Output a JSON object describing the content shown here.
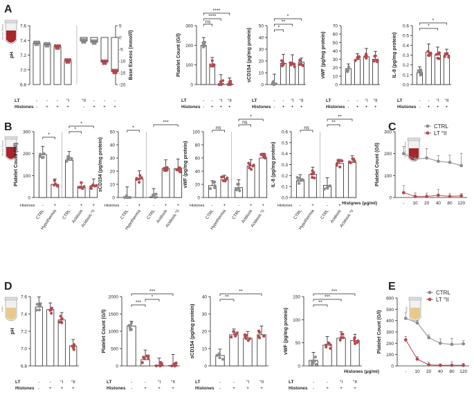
{
  "colors": {
    "ctrl": "#8c8c8c",
    "lt": "#b5494f",
    "bar": "#ffffff",
    "tube_blood": "#a6262b",
    "tube_prp": "#e8c98a"
  },
  "tubes": {
    "whole_blood": "Whole Blood",
    "prp": "PRP"
  },
  "panels": [
    {
      "letter": "A"
    },
    {
      "letter": "B"
    },
    {
      "letter": "C"
    },
    {
      "letter": "D"
    },
    {
      "letter": "E"
    }
  ],
  "rowlabels": {
    "lt": "LT",
    "histones": "Histones"
  },
  "conditions": {
    "A4": {
      "lt": [
        "-",
        "-",
        "°I",
        "°II"
      ],
      "hist": [
        "-",
        "+",
        "+",
        "+"
      ]
    },
    "A8": {
      "lt": [
        "-",
        "-",
        "-",
        "°I",
        "°II",
        "-",
        "-",
        "-"
      ],
      "hist": [
        "-",
        "+",
        "+",
        "+",
        "-",
        "+",
        "+",
        "+"
      ]
    },
    "D4": {
      "lt": [
        "-",
        "-",
        "°I",
        "°II"
      ],
      "hist": [
        "-",
        "+",
        "+",
        "+"
      ]
    },
    "B_hist": "Histones",
    "B_hist_vals_2": [
      "-",
      "+"
    ],
    "B_hist_vals_3": [
      "-",
      "+",
      "+"
    ]
  },
  "chart_data": [
    {
      "id": "A1",
      "panel": "A",
      "type": "bar",
      "ylabel": "pH",
      "y2label": "Base Excess (mmol/l)",
      "ylim": [
        6.8,
        7.6
      ],
      "yticks": [
        "6.8",
        "7.0",
        "7.2",
        "7.4",
        "7.6"
      ],
      "y2lim": [
        -20,
        5
      ],
      "y2ticks": [
        "-20",
        "-15",
        "-10",
        "-5",
        "0",
        "5"
      ],
      "series": [
        {
          "name": "pH",
          "values": [
            7.36,
            7.34,
            7.31,
            7.12
          ]
        },
        {
          "name": "Base Excess",
          "values": [
            -1.5,
            -2.0,
            -10.5,
            -14.5
          ]
        }
      ]
    },
    {
      "id": "A2",
      "panel": "A",
      "type": "bar",
      "ylabel": "Platelet Count (G/l)",
      "ylim": [
        0,
        300
      ],
      "yticks": [
        "0",
        "100",
        "200",
        "300"
      ],
      "values": [
        200,
        105,
        5,
        3
      ],
      "annotations": [
        "ns",
        "****",
        "****"
      ]
    },
    {
      "id": "A3",
      "panel": "A",
      "type": "bar",
      "ylabel": "sCD154 (pg/mg protein)",
      "ylim": [
        0,
        50
      ],
      "yticks": [
        "0",
        "10",
        "20",
        "30",
        "40",
        "50"
      ],
      "values": [
        1,
        18,
        18,
        19
      ],
      "annotations": [
        "*",
        "**",
        "*"
      ]
    },
    {
      "id": "A4",
      "panel": "A",
      "type": "bar",
      "ylabel": "vWF (pg/mg protein)",
      "ylim": [
        0,
        70
      ],
      "yticks": [
        "0",
        "10",
        "20",
        "30",
        "40",
        "50",
        "60",
        "70"
      ],
      "values": [
        19,
        30,
        33,
        30
      ]
    },
    {
      "id": "A5",
      "panel": "A",
      "type": "bar",
      "ylabel": "IL-8 (pg/mg protein)",
      "ylim": [
        0,
        0.6
      ],
      "yticks": [
        "0.0",
        "0.1",
        "0.2",
        "0.3",
        "0.4",
        "0.5",
        "0.6"
      ],
      "values": [
        0.12,
        0.33,
        0.3,
        0.3
      ],
      "annotations": [
        "*",
        "*"
      ]
    },
    {
      "id": "B1",
      "panel": "B",
      "type": "bar",
      "ylabel": "Platelet Count (G/l)",
      "ylim": [
        0,
        300
      ],
      "yticks": [
        "0",
        "100",
        "200",
        "300"
      ],
      "values": [
        195,
        60,
        170,
        50,
        50
      ],
      "categories": [
        "CTRL",
        "Hypothermia",
        "CTRL",
        "Acidosis",
        "Acidosis °II"
      ],
      "annotations": [
        "*",
        "*",
        "*"
      ]
    },
    {
      "id": "B2",
      "panel": "B",
      "type": "bar",
      "ylabel": "sCD154 (pg/mg protein)",
      "ylim": [
        0,
        50
      ],
      "yticks": [
        "0",
        "10",
        "20",
        "30",
        "40",
        "50"
      ],
      "values": [
        0.5,
        14,
        0.5,
        22,
        22
      ],
      "categories": [
        "CTRL",
        "Hypothermia",
        "CTRL",
        "Acidosis",
        "Acidosis °II"
      ],
      "annotations": [
        "*",
        "***"
      ]
    },
    {
      "id": "B3",
      "panel": "B",
      "type": "bar",
      "ylabel": "vWF (pg/mg protein)",
      "ylim": [
        0,
        100
      ],
      "yticks": [
        "0",
        "20",
        "40",
        "60",
        "80",
        "100"
      ],
      "values": [
        18,
        27,
        15,
        48,
        60
      ],
      "categories": [
        "CTRL",
        "Hypothermia",
        "CTRL",
        "Acidosis",
        "Acidosis °II"
      ],
      "annotations": [
        "ns",
        "ns",
        "*"
      ]
    },
    {
      "id": "B4",
      "panel": "B",
      "type": "bar",
      "ylabel": "IL-8 (pg/mg protein)",
      "ylim": [
        0,
        0.6
      ],
      "yticks": [
        "0.0",
        "0.1",
        "0.2",
        "0.3",
        "0.4",
        "0.5",
        "0.6"
      ],
      "values": [
        0.15,
        0.21,
        0.11,
        0.31,
        0.32
      ],
      "categories": [
        "CTRL",
        "Hypothermia",
        "CTRL",
        "Acidosis",
        "Acidosis °II"
      ],
      "annotations": [
        "ns",
        "**",
        "**"
      ]
    },
    {
      "id": "C1",
      "panel": "C",
      "type": "line",
      "ylabel": "Platelet Count (G/l)",
      "xlabel": "Histones (μg/ml)",
      "ylim": [
        0,
        300
      ],
      "yticks": [
        "0",
        "100",
        "200",
        "300"
      ],
      "x": [
        "-",
        "10",
        "20",
        "40",
        "80",
        "120"
      ],
      "series": [
        {
          "name": "CTRL",
          "values": [
            200,
            175,
            180,
            165,
            160,
            145
          ]
        },
        {
          "name": "LT °II",
          "values": [
            22,
            5,
            5,
            10,
            5,
            8
          ]
        }
      ]
    },
    {
      "id": "D1",
      "panel": "D",
      "type": "bar",
      "ylabel": "pH",
      "ylim": [
        6.8,
        7.6
      ],
      "yticks": [
        "6.8",
        "7.0",
        "7.2",
        "7.4",
        "7.6"
      ],
      "values": [
        7.48,
        7.45,
        7.33,
        7.03
      ]
    },
    {
      "id": "D2",
      "panel": "D",
      "type": "bar",
      "ylabel": "Platelet Count (G/l)",
      "ylim": [
        0,
        2000
      ],
      "yticks": [
        "0",
        "500",
        "1000",
        "1500",
        "2000"
      ],
      "values": [
        1150,
        180,
        20,
        10
      ],
      "annotations": [
        "***",
        "*",
        "***"
      ]
    },
    {
      "id": "D3",
      "panel": "D",
      "type": "bar",
      "ylabel": "sCD154 (pg/mg protein)",
      "ylim": [
        0,
        40
      ],
      "yticks": [
        "0",
        "10",
        "20",
        "30",
        "40"
      ],
      "values": [
        6,
        18,
        16,
        18
      ],
      "annotations": [
        "**",
        "**"
      ]
    },
    {
      "id": "D4",
      "panel": "D",
      "type": "bar",
      "ylabel": "vWF (pg/mg protein)",
      "ylim": [
        0,
        150
      ],
      "yticks": [
        "0",
        "50",
        "100",
        "150"
      ],
      "values": [
        12,
        45,
        60,
        55
      ],
      "annotations": [
        "**",
        "***",
        "***"
      ]
    },
    {
      "id": "E1",
      "panel": "E",
      "type": "line",
      "ylabel": "Platelet Count (G/l)",
      "xlabel": "Histones (μg/ml)",
      "ylim": [
        0,
        600
      ],
      "yticks": [
        "0",
        "100",
        "200",
        "300",
        "400",
        "500",
        "600"
      ],
      "x": [
        "-",
        "10",
        "20",
        "40",
        "80",
        "120"
      ],
      "series": [
        {
          "name": "CTRL",
          "values": [
            420,
            380,
            250,
            200,
            190,
            195
          ]
        },
        {
          "name": "LT °II",
          "values": [
            230,
            60,
            10,
            5,
            5,
            5
          ]
        }
      ]
    }
  ]
}
